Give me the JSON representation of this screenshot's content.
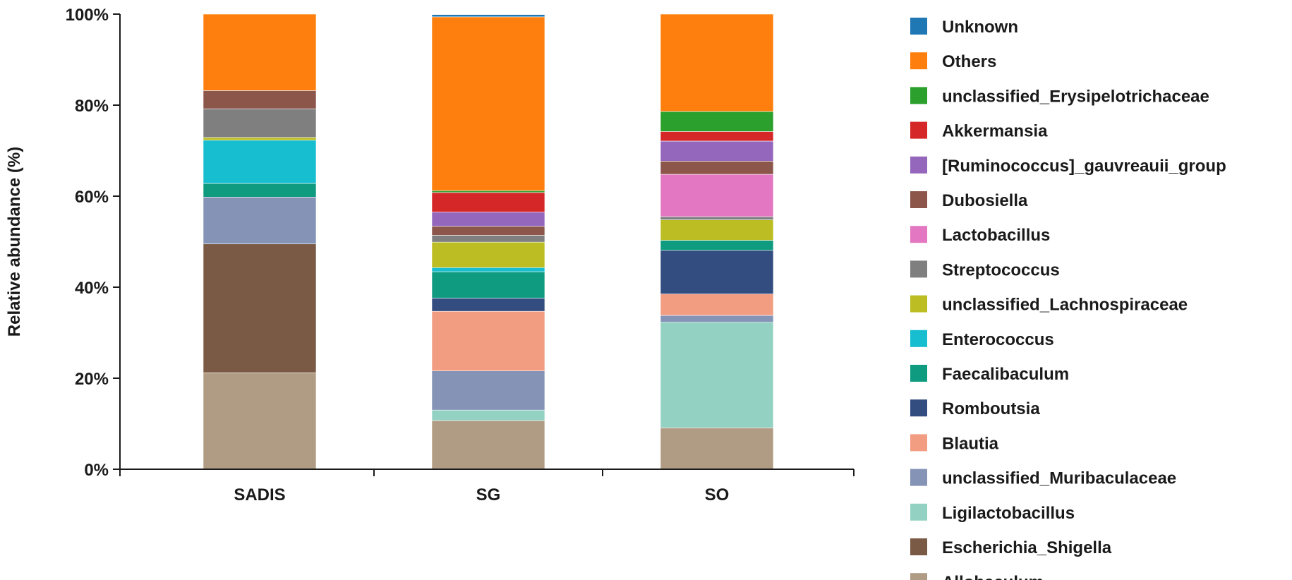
{
  "chart_data": {
    "type": "bar",
    "stacked": true,
    "percent": true,
    "categories": [
      "SADIS",
      "SG",
      "SO"
    ],
    "ylabel": "Relative abundance (%)",
    "xlabel": "",
    "ylim": [
      0,
      100
    ],
    "yticks": [
      "0%",
      "20%",
      "40%",
      "60%",
      "80%",
      "100%"
    ],
    "legend_position": "right",
    "series": [
      {
        "name": "Allobaculum",
        "color": "#b09c84",
        "values": [
          21.2,
          10.7,
          9.1
        ]
      },
      {
        "name": "Escherichia_Shigella",
        "color": "#7a5a44",
        "values": [
          28.3,
          0.0,
          0.0
        ]
      },
      {
        "name": "Ligilactobacillus",
        "color": "#93d2c2",
        "values": [
          0.0,
          2.3,
          23.2
        ]
      },
      {
        "name": "unclassified_Muribaculaceae",
        "color": "#8493b6",
        "values": [
          10.3,
          8.6,
          1.5
        ]
      },
      {
        "name": "Blautia",
        "color": "#f29d82",
        "values": [
          0.0,
          13.1,
          4.7
        ]
      },
      {
        "name": "Romboutsia",
        "color": "#344d81",
        "values": [
          0.0,
          2.9,
          9.6
        ]
      },
      {
        "name": "Faecalibaculum",
        "color": "#0f9b80",
        "values": [
          3.0,
          5.8,
          2.2
        ]
      },
      {
        "name": "Enterococcus",
        "color": "#17becf",
        "values": [
          9.5,
          0.9,
          0.0
        ]
      },
      {
        "name": "unclassified_Lachnospiraceae",
        "color": "#bcbd22",
        "values": [
          0.6,
          5.6,
          4.5
        ]
      },
      {
        "name": "Streptococcus",
        "color": "#7f7f7f",
        "values": [
          6.3,
          1.5,
          0.7
        ]
      },
      {
        "name": "Lactobacillus",
        "color": "#e377c2",
        "values": [
          0.0,
          0.0,
          9.3
        ]
      },
      {
        "name": "Dubosiella",
        "color": "#8c564b",
        "values": [
          4.0,
          2.0,
          2.9
        ]
      },
      {
        "name": "[Ruminococcus]_gauvreauii_group",
        "color": "#9467bd",
        "values": [
          0.0,
          3.1,
          4.4
        ]
      },
      {
        "name": "Akkermansia",
        "color": "#d62728",
        "values": [
          0.0,
          4.3,
          2.1
        ]
      },
      {
        "name": "unclassified_Erysipelotrichaceae",
        "color": "#2ca02c",
        "values": [
          0.0,
          0.4,
          4.4
        ]
      },
      {
        "name": "Others",
        "color": "#ff7f0e",
        "values": [
          16.8,
          38.2,
          21.4
        ]
      },
      {
        "name": "Unknown",
        "color": "#1f77b4",
        "values": [
          0.0,
          0.5,
          0.0
        ]
      }
    ]
  }
}
